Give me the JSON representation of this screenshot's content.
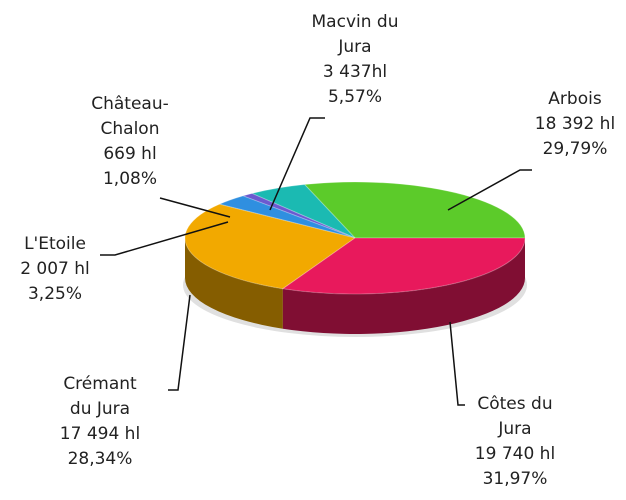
{
  "chart_data": {
    "type": "pie3d",
    "categories": [
      "Arbois",
      "Macvin du Jura",
      "Château-Chalon",
      "L'Etoile",
      "Crémant du Jura",
      "Côtes du Jura"
    ],
    "values": [
      18392,
      3437,
      669,
      2007,
      17494,
      19740
    ],
    "value_labels": [
      "18 392 hl",
      "3 437hl",
      "669 hl",
      "2 007 hl",
      "17 494 hl",
      "19 740 hl"
    ],
    "percentages": [
      29.79,
      5.57,
      1.08,
      3.25,
      28.34,
      31.97
    ],
    "percentage_labels": [
      "29,79%",
      "5,57%",
      "1,08%",
      "3,25%",
      "28,34%",
      "31,97%"
    ],
    "colors": [
      "#5ccb2a",
      "#1bbab2",
      "#6a5ad0",
      "#2f8fe0",
      "#f2a900",
      "#e8195c"
    ]
  }
}
